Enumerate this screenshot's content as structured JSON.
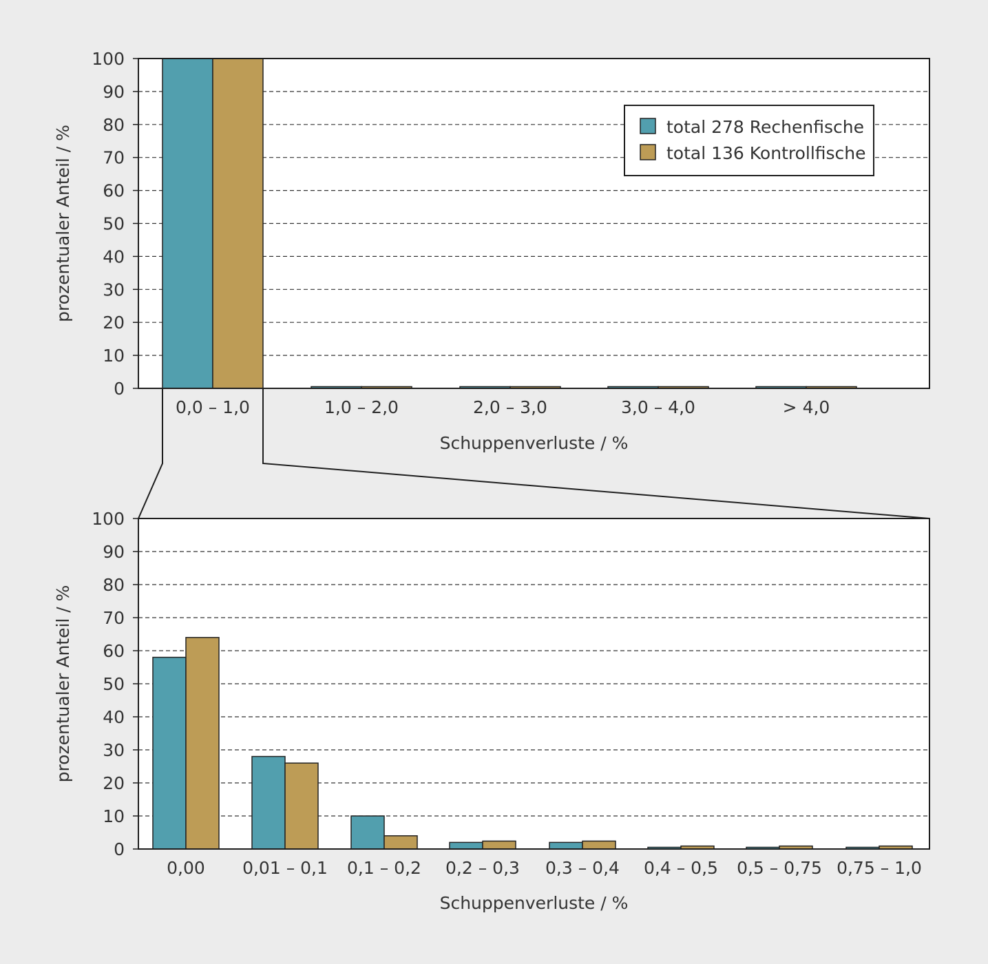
{
  "colors": {
    "series_1": "#529fae",
    "series_2": "#bd9c56",
    "background": "#ececec",
    "plot": "#ffffff",
    "axis": "#1e1e1e"
  },
  "legend": {
    "items": [
      "total 278 Rechenfische",
      "total 136 Kontrollfische"
    ]
  },
  "chart_data": [
    {
      "type": "bar",
      "title": "",
      "xlabel": "Schuppenverluste / %",
      "ylabel": "prozentualer Anteil / %",
      "ylim": [
        0,
        100
      ],
      "yticks": [
        0,
        10,
        20,
        30,
        40,
        50,
        60,
        70,
        80,
        90,
        100
      ],
      "grid": true,
      "legend_position": "top-right",
      "categories": [
        "0,0 – 1,0",
        "1,0 – 2,0",
        "2,0 – 3,0",
        "3,0 – 4,0",
        "> 4,0"
      ],
      "series": [
        {
          "name": "total 278 Rechenfische",
          "values": [
            100,
            0,
            0,
            0,
            0
          ]
        },
        {
          "name": "total 136 Kontrollfische",
          "values": [
            100,
            0,
            0,
            0,
            0
          ]
        }
      ]
    },
    {
      "type": "bar",
      "title": "",
      "xlabel": "Schuppenverluste / %",
      "ylabel": "prozentualer Anteil / %",
      "ylim": [
        0,
        100
      ],
      "yticks": [
        0,
        10,
        20,
        30,
        40,
        50,
        60,
        70,
        80,
        90,
        100
      ],
      "grid": true,
      "categories": [
        "0,00",
        "0,01 – 0,1",
        "0,1 – 0,2",
        "0,2 – 0,3",
        "0,3 – 0,4",
        "0,4 – 0,5",
        "0,5 – 0,75",
        "0,75 – 1,0"
      ],
      "series": [
        {
          "name": "total 278 Rechenfische",
          "values": [
            58,
            28,
            10,
            2,
            2,
            0.4,
            0.4,
            0.4
          ]
        },
        {
          "name": "total 136 Kontrollfische",
          "values": [
            64,
            26,
            4,
            2.4,
            2.4,
            0.9,
            0.9,
            0.9
          ]
        }
      ]
    }
  ]
}
